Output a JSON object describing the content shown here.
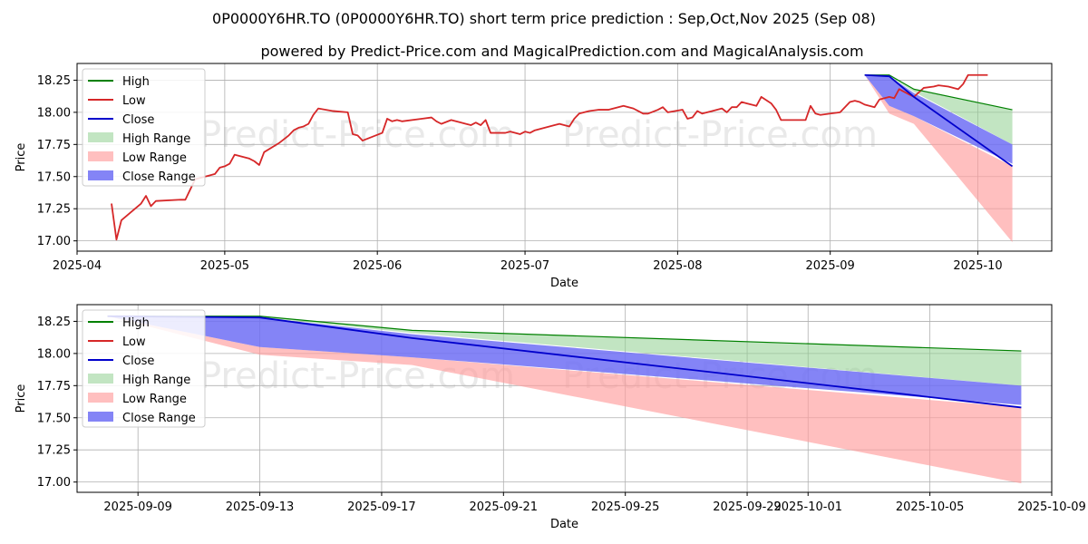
{
  "title": "0P0000Y6HR.TO (0P0000Y6HR.TO) short term price prediction : Sep,Oct,Nov 2025 (Sep 08)",
  "subtitle": "powered by Predict-Price.com and MagicalPrediction.com and MagicalAnalysis.com",
  "watermark": "Predict-Price.com",
  "colors": {
    "high": "#008000",
    "low": "#d62728",
    "close": "#0000cc",
    "high_range": "#8fd08f",
    "low_range": "#ff9c9c",
    "close_range": "#6f6ff5"
  },
  "chart_data": [
    {
      "type": "line",
      "xlabel": "Date",
      "ylabel": "Price",
      "xlim": [
        "2025-04-01",
        "2025-10-16"
      ],
      "ylim": [
        16.92,
        18.38
      ],
      "grid": true,
      "legend_position": "top-left",
      "xticks": [
        "2025-04",
        "2025-05",
        "2025-06",
        "2025-07",
        "2025-08",
        "2025-09",
        "2025-10"
      ],
      "xtick_dates": [
        "2025-04-01",
        "2025-05-01",
        "2025-06-01",
        "2025-07-01",
        "2025-08-01",
        "2025-09-01",
        "2025-10-01"
      ],
      "yticks": [
        "17.00",
        "17.25",
        "17.50",
        "17.75",
        "18.00",
        "18.25"
      ],
      "legend": [
        "High",
        "Low",
        "Close",
        "High Range",
        "Low Range",
        "Close Range"
      ],
      "history_low": [
        [
          "2025-04-08",
          17.29
        ],
        [
          "2025-04-09",
          17.01
        ],
        [
          "2025-04-10",
          17.16
        ],
        [
          "2025-04-14",
          17.29
        ],
        [
          "2025-04-15",
          17.35
        ],
        [
          "2025-04-16",
          17.27
        ],
        [
          "2025-04-17",
          17.31
        ],
        [
          "2025-04-22",
          17.32
        ],
        [
          "2025-04-23",
          17.32
        ],
        [
          "2025-04-24",
          17.4
        ],
        [
          "2025-04-25",
          17.48
        ],
        [
          "2025-04-28",
          17.51
        ],
        [
          "2025-04-29",
          17.52
        ],
        [
          "2025-04-30",
          17.57
        ],
        [
          "2025-05-01",
          17.58
        ],
        [
          "2025-05-02",
          17.6
        ],
        [
          "2025-05-03",
          17.67
        ],
        [
          "2025-05-06",
          17.64
        ],
        [
          "2025-05-07",
          17.62
        ],
        [
          "2025-05-08",
          17.59
        ],
        [
          "2025-05-09",
          17.69
        ],
        [
          "2025-05-12",
          17.76
        ],
        [
          "2025-05-13",
          17.79
        ],
        [
          "2025-05-14",
          17.82
        ],
        [
          "2025-05-15",
          17.86
        ],
        [
          "2025-05-16",
          17.88
        ],
        [
          "2025-05-17",
          17.89
        ],
        [
          "2025-05-18",
          17.91
        ],
        [
          "2025-05-19",
          17.98
        ],
        [
          "2025-05-20",
          18.03
        ],
        [
          "2025-05-23",
          18.01
        ],
        [
          "2025-05-26",
          18.0
        ],
        [
          "2025-05-27",
          17.83
        ],
        [
          "2025-05-28",
          17.82
        ],
        [
          "2025-05-29",
          17.78
        ],
        [
          "2025-06-02",
          17.84
        ],
        [
          "2025-06-03",
          17.95
        ],
        [
          "2025-06-04",
          17.93
        ],
        [
          "2025-06-05",
          17.94
        ],
        [
          "2025-06-06",
          17.93
        ],
        [
          "2025-06-10",
          17.95
        ],
        [
          "2025-06-12",
          17.96
        ],
        [
          "2025-06-13",
          17.93
        ],
        [
          "2025-06-14",
          17.91
        ],
        [
          "2025-06-16",
          17.94
        ],
        [
          "2025-06-19",
          17.91
        ],
        [
          "2025-06-20",
          17.9
        ],
        [
          "2025-06-21",
          17.92
        ],
        [
          "2025-06-22",
          17.9
        ],
        [
          "2025-06-23",
          17.94
        ],
        [
          "2025-06-24",
          17.84
        ],
        [
          "2025-06-27",
          17.84
        ],
        [
          "2025-06-28",
          17.85
        ],
        [
          "2025-06-30",
          17.83
        ],
        [
          "2025-07-01",
          17.85
        ],
        [
          "2025-07-02",
          17.84
        ],
        [
          "2025-07-03",
          17.86
        ],
        [
          "2025-07-07",
          17.9
        ],
        [
          "2025-07-08",
          17.91
        ],
        [
          "2025-07-10",
          17.89
        ],
        [
          "2025-07-11",
          17.95
        ],
        [
          "2025-07-12",
          17.99
        ],
        [
          "2025-07-14",
          18.01
        ],
        [
          "2025-07-16",
          18.02
        ],
        [
          "2025-07-18",
          18.02
        ],
        [
          "2025-07-21",
          18.05
        ],
        [
          "2025-07-23",
          18.03
        ],
        [
          "2025-07-24",
          18.01
        ],
        [
          "2025-07-25",
          17.99
        ],
        [
          "2025-07-26",
          17.99
        ],
        [
          "2025-07-28",
          18.02
        ],
        [
          "2025-07-29",
          18.04
        ],
        [
          "2025-07-30",
          18.0
        ],
        [
          "2025-08-02",
          18.02
        ],
        [
          "2025-08-03",
          17.95
        ],
        [
          "2025-08-04",
          17.96
        ],
        [
          "2025-08-05",
          18.01
        ],
        [
          "2025-08-06",
          17.99
        ],
        [
          "2025-08-08",
          18.01
        ],
        [
          "2025-08-10",
          18.03
        ],
        [
          "2025-08-11",
          18.0
        ],
        [
          "2025-08-12",
          18.04
        ],
        [
          "2025-08-13",
          18.04
        ],
        [
          "2025-08-14",
          18.08
        ],
        [
          "2025-08-15",
          18.07
        ],
        [
          "2025-08-17",
          18.05
        ],
        [
          "2025-08-18",
          18.12
        ],
        [
          "2025-08-20",
          18.07
        ],
        [
          "2025-08-21",
          18.02
        ],
        [
          "2025-08-22",
          17.94
        ],
        [
          "2025-08-25",
          17.94
        ],
        [
          "2025-08-27",
          17.94
        ],
        [
          "2025-08-28",
          18.05
        ],
        [
          "2025-08-29",
          17.99
        ],
        [
          "2025-08-30",
          17.98
        ],
        [
          "2025-09-01",
          17.99
        ],
        [
          "2025-09-03",
          18.0
        ],
        [
          "2025-09-05",
          18.08
        ],
        [
          "2025-09-06",
          18.09
        ],
        [
          "2025-09-07",
          18.08
        ],
        [
          "2025-09-08",
          18.06
        ],
        [
          "2025-09-10",
          18.04
        ],
        [
          "2025-09-11",
          18.1
        ],
        [
          "2025-09-13",
          18.12
        ],
        [
          "2025-09-14",
          18.11
        ],
        [
          "2025-09-15",
          18.18
        ],
        [
          "2025-09-17",
          18.14
        ],
        [
          "2025-09-18",
          18.12
        ],
        [
          "2025-09-20",
          18.19
        ],
        [
          "2025-09-22",
          18.2
        ],
        [
          "2025-09-23",
          18.21
        ],
        [
          "2025-09-25",
          18.2
        ],
        [
          "2025-09-27",
          18.18
        ],
        [
          "2025-09-28",
          18.22
        ],
        [
          "2025-09-29",
          18.29
        ],
        [
          "2025-09-30",
          18.29
        ],
        [
          "2025-10-01",
          18.29
        ],
        [
          "2025-10-02",
          18.29
        ],
        [
          "2025-10-03",
          18.29
        ]
      ],
      "forecast_dates": [
        "2025-09-08",
        "2025-09-13",
        "2025-09-18",
        "2025-10-08"
      ],
      "forecast_high": [
        18.29,
        18.29,
        18.18,
        18.02
      ],
      "forecast_close": [
        18.29,
        18.28,
        18.12,
        17.58
      ],
      "high_range_upper": [
        18.29,
        18.29,
        18.18,
        18.02
      ],
      "high_range_lower": [
        18.29,
        18.28,
        18.16,
        17.75
      ],
      "close_range_upper": [
        18.29,
        18.28,
        18.15,
        17.75
      ],
      "close_range_lower": [
        18.29,
        18.05,
        17.97,
        17.6
      ],
      "low_range_upper": [
        18.29,
        18.05,
        17.97,
        17.58
      ],
      "low_range_lower": [
        18.29,
        17.99,
        17.91,
        16.99
      ]
    },
    {
      "type": "line",
      "xlabel": "Date",
      "ylabel": "Price",
      "xlim": [
        "2025-09-07",
        "2025-10-09"
      ],
      "ylim": [
        16.92,
        18.38
      ],
      "grid": true,
      "legend_position": "top-left",
      "xticks": [
        "2025-09-09",
        "2025-09-13",
        "2025-09-17",
        "2025-09-21",
        "2025-09-25",
        "2025-09-29",
        "2025-10-01",
        "2025-10-05",
        "2025-10-09"
      ],
      "xtick_dates": [
        "2025-09-09",
        "2025-09-13",
        "2025-09-17",
        "2025-09-21",
        "2025-09-25",
        "2025-09-29",
        "2025-10-01",
        "2025-10-05",
        "2025-10-09"
      ],
      "yticks": [
        "17.00",
        "17.25",
        "17.50",
        "17.75",
        "18.00",
        "18.25"
      ],
      "legend": [
        "High",
        "Low",
        "Close",
        "High Range",
        "Low Range",
        "Close Range"
      ],
      "forecast_dates": [
        "2025-09-08",
        "2025-09-13",
        "2025-09-18",
        "2025-10-08"
      ],
      "forecast_high": [
        18.29,
        18.29,
        18.18,
        18.02
      ],
      "forecast_close": [
        18.29,
        18.28,
        18.12,
        17.58
      ],
      "high_range_upper": [
        18.29,
        18.29,
        18.18,
        18.02
      ],
      "high_range_lower": [
        18.29,
        18.28,
        18.16,
        17.75
      ],
      "close_range_upper": [
        18.29,
        18.28,
        18.15,
        17.75
      ],
      "close_range_lower": [
        18.29,
        18.05,
        17.97,
        17.6
      ],
      "low_range_upper": [
        18.29,
        18.05,
        17.97,
        17.58
      ],
      "low_range_lower": [
        18.29,
        17.99,
        17.91,
        16.99
      ]
    }
  ]
}
